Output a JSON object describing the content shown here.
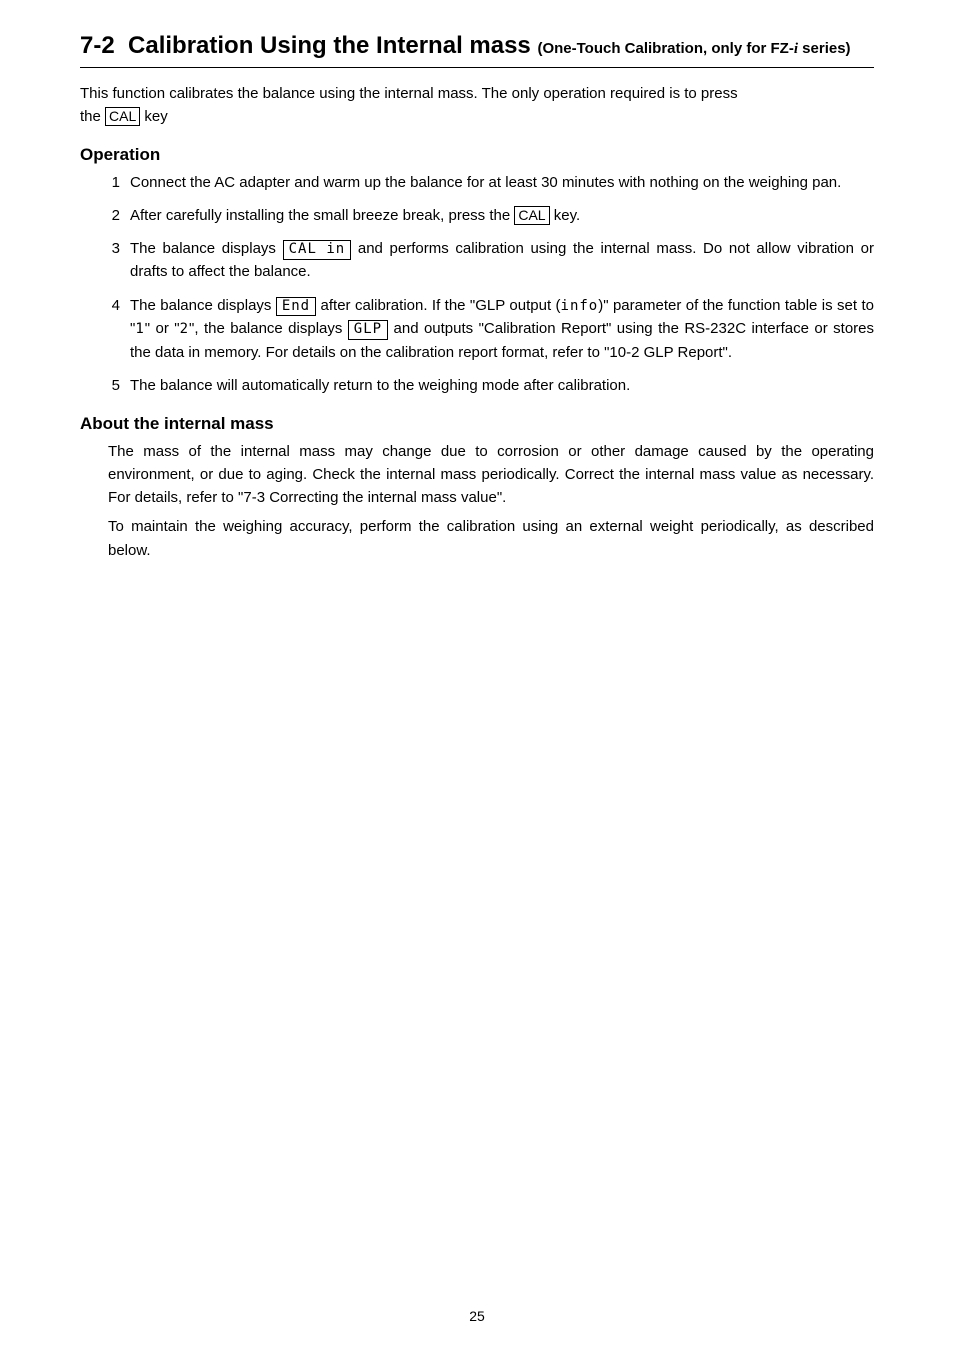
{
  "section": {
    "number": "7-2",
    "title_main": "Calibration Using the Internal mass",
    "title_sub_prefix": "(One-Touch Calibration, only for FZ-",
    "title_sub_italic": "i",
    "title_sub_suffix": " series)"
  },
  "intro": {
    "line1": "This function calibrates the balance using the internal mass. The only operation required is to press",
    "line2_prefix": "the ",
    "line2_key": "CAL",
    "line2_suffix": " key"
  },
  "operation": {
    "heading": "Operation",
    "steps": [
      {
        "n": "1",
        "text": "Connect the AC adapter and warm up the balance for at least 30 minutes with nothing on the weighing pan."
      },
      {
        "n": "2",
        "prefix": "After carefully installing the small breeze break, press the ",
        "key": "CAL",
        "suffix": " key."
      },
      {
        "n": "3",
        "prefix": "The balance displays ",
        "lcd": "CAL in",
        "suffix": " and performs calibration using the internal mass. Do not allow vibration or drafts to affect the balance."
      },
      {
        "n": "4",
        "p1": "The balance displays ",
        "lcd1": "End",
        "p2": " after calibration. If the \"GLP output (",
        "inline_lcd": "info",
        "p3": ")\" parameter of the function table is set to \"",
        "inline_1": "1",
        "p4": "\" or \"",
        "inline_2": "2",
        "p5": "\", the balance displays ",
        "lcd2": "GLP",
        "p6": " and outputs \"Calibration Report\" using the RS-232C interface or stores the data in memory. For details on the calibration report format, refer to \"10-2 GLP Report\"."
      },
      {
        "n": "5",
        "text": "The balance will automatically return to the weighing mode after calibration."
      }
    ]
  },
  "about": {
    "heading": "About the internal mass",
    "para1": "The mass of the internal mass may change due to corrosion or other damage caused by the operating environment, or due to aging. Check the internal mass periodically. Correct the internal mass value as necessary. For details, refer to \"7-3 Correcting the internal mass value\".",
    "para2": "To maintain the weighing accuracy, perform the calibration using an external weight periodically, as described below."
  },
  "page_number": "25"
}
